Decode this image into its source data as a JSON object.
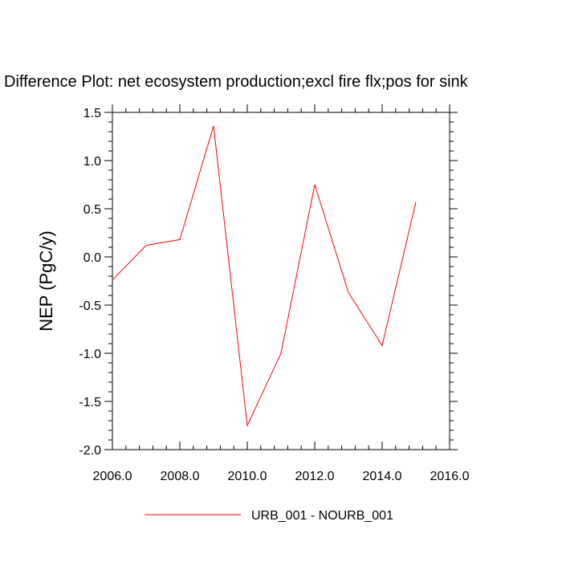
{
  "chart_data": {
    "type": "line",
    "title": "Difference Plot: net ecosystem production;excl fire flx;pos for sink",
    "xlabel": "",
    "ylabel": "NEP  (PgC/y)",
    "xlim": [
      2006,
      2016
    ],
    "ylim": [
      -2.0,
      1.5
    ],
    "x_ticks": [
      2006,
      2008,
      2010,
      2012,
      2014,
      2016
    ],
    "x_tick_labels": [
      "2006.0",
      "2008.0",
      "2010.0",
      "2012.0",
      "2014.0",
      "2016.0"
    ],
    "y_ticks": [
      -2.0,
      -1.5,
      -1.0,
      -0.5,
      0.0,
      0.5,
      1.0,
      1.5
    ],
    "y_tick_labels": [
      "-2.0",
      "-1.5",
      "-1.0",
      "-0.5",
      "0.0",
      "0.5",
      "1.0",
      "1.5"
    ],
    "grid": false,
    "legend_position": "bottom",
    "series": [
      {
        "name": "URB_001 - NOURB_001",
        "color": "#ff0000",
        "x": [
          2006,
          2007,
          2008,
          2009,
          2010,
          2011,
          2012,
          2013,
          2014,
          2015
        ],
        "y": [
          -0.24,
          0.12,
          0.18,
          1.36,
          -1.75,
          -1.0,
          0.75,
          -0.37,
          -0.92,
          0.57
        ]
      }
    ]
  }
}
